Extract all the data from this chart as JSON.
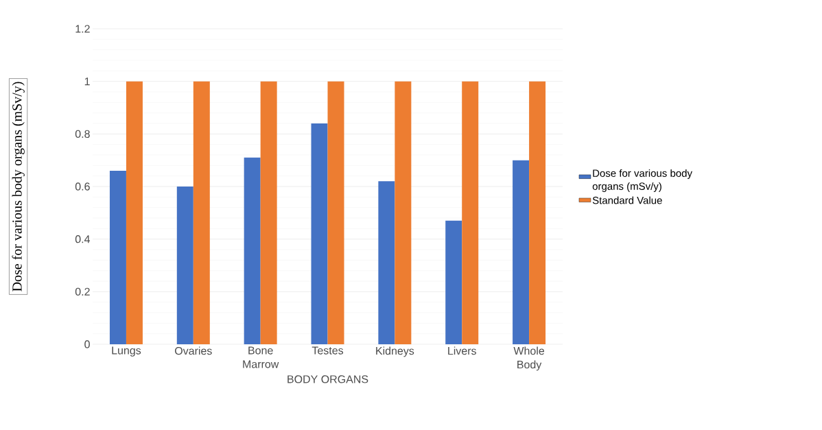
{
  "chart_data": {
    "type": "bar",
    "categories": [
      "Lungs",
      "Ovaries",
      "Bone Marrow",
      "Testes",
      "Kidneys",
      "Livers",
      "Whole Body"
    ],
    "series": [
      {
        "name": "Dose for various body organs (mSv/y)",
        "color": "#4472c4",
        "values": [
          0.66,
          0.6,
          0.71,
          0.84,
          0.62,
          0.47,
          0.7
        ]
      },
      {
        "name": "Standard Value",
        "color": "#ed7d31",
        "values": [
          1,
          1,
          1,
          1,
          1,
          1,
          1
        ]
      }
    ],
    "xlabel": "BODY ORGANS",
    "ylabel": "Dose for various body organs (mSv/y)",
    "ylim": [
      0,
      1.2
    ],
    "yticks": [
      0,
      0.2,
      0.4,
      0.6,
      0.8,
      1,
      1.2
    ],
    "grid": "y",
    "legend": "right"
  }
}
